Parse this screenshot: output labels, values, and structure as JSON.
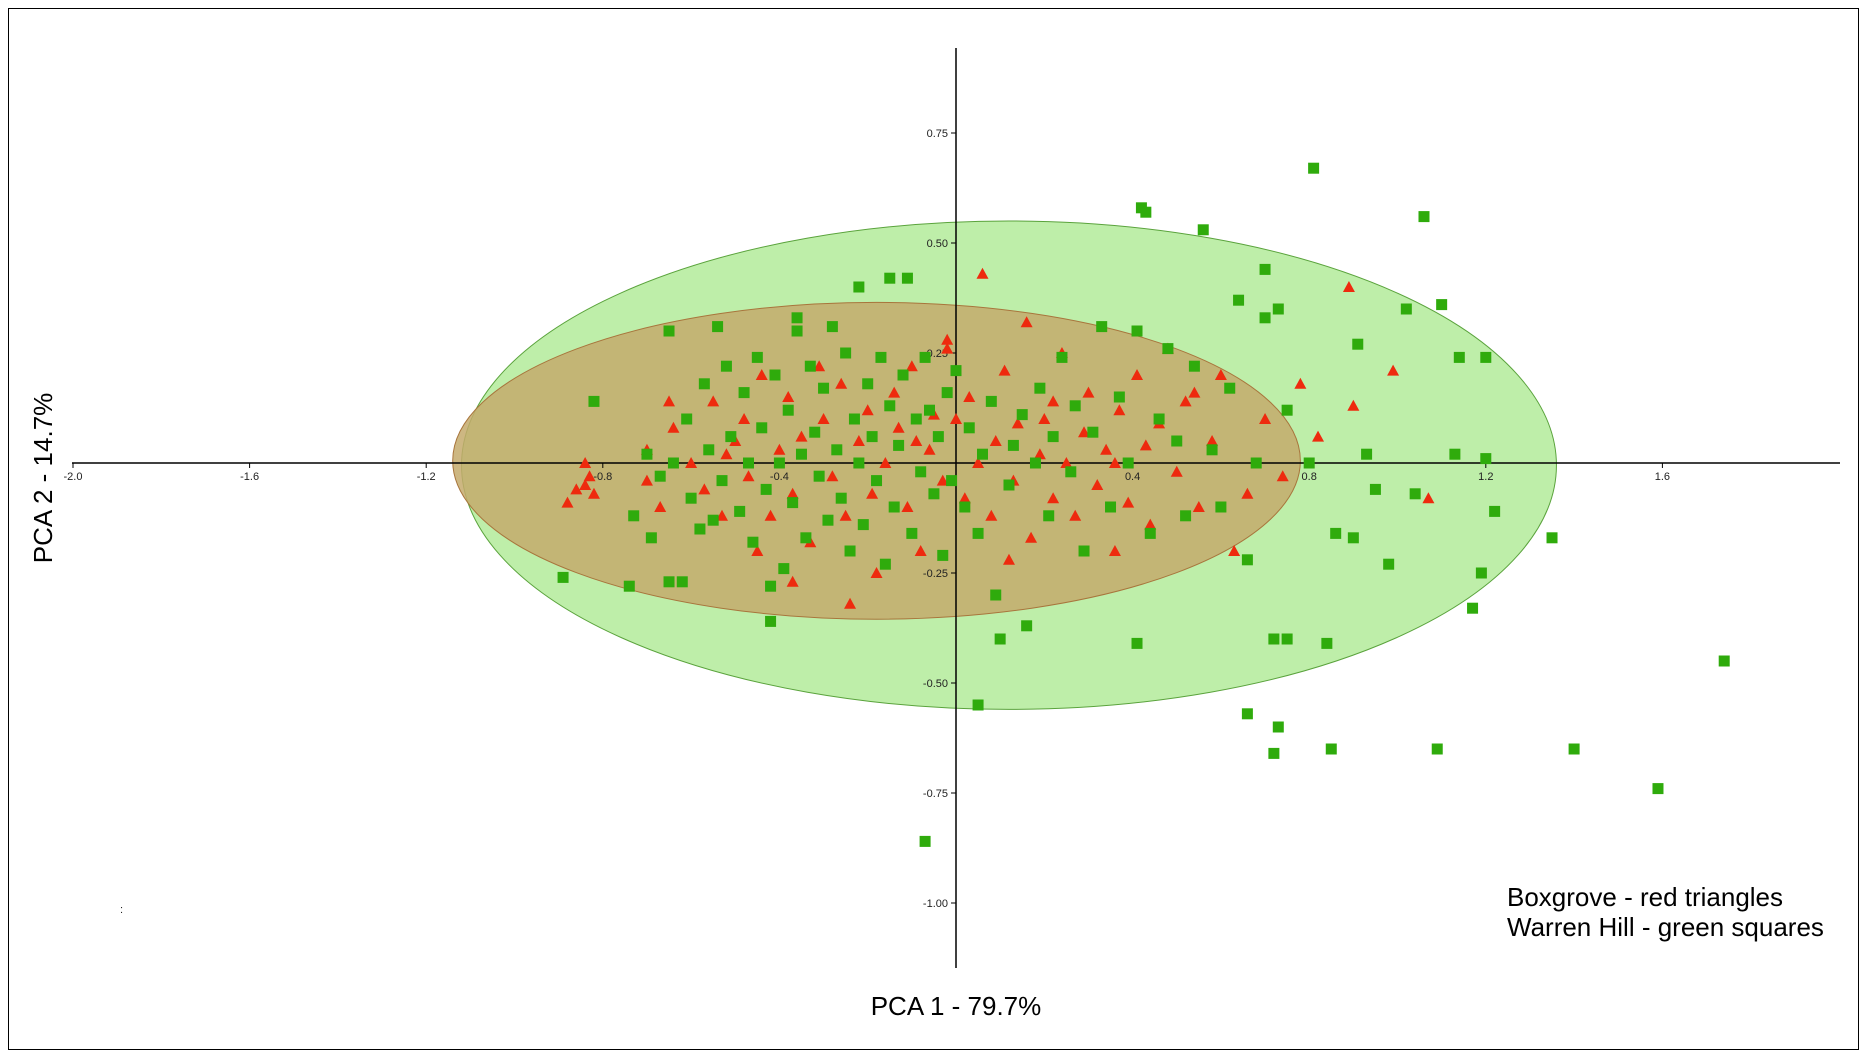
{
  "chart_data": {
    "type": "scatter",
    "title": "",
    "xlabel": "PCA 1 - 79.7%",
    "ylabel": "PCA 2 - 14.7%",
    "xlim": [
      -2.0,
      2.0
    ],
    "ylim": [
      -1.15,
      0.95
    ],
    "x_ticks": [
      "-2.0",
      "-1.6",
      "-1.2",
      "-0.8",
      "-0.4",
      "0.4",
      "0.8",
      "1.2",
      "1.6"
    ],
    "y_ticks": [
      "0.75",
      "0.50",
      "0.25",
      "-0.25",
      "-0.50",
      "-0.75",
      "-1.00"
    ],
    "grid": false,
    "legend": {
      "placement": "bottom-right",
      "lines": [
        "Boxgrove - red triangles",
        "Warren Hill - green squares"
      ]
    },
    "annotation": ":",
    "colors": {
      "boxgrove": "#ee2a0e",
      "warren_hill": "#2fab0c",
      "warren_ellipse_fill": "#a8e88c",
      "warren_ellipse_stroke": "#5aa33c",
      "boxgrove_ellipse_fill": "#c4aa6c",
      "boxgrove_ellipse_stroke": "#a8753c"
    },
    "ellipses": [
      {
        "series": "Warren Hill",
        "cx": 0.12,
        "cy": -0.005,
        "rx": 1.24,
        "ry": 0.555
      },
      {
        "series": "Boxgrove",
        "cx": -0.18,
        "cy": 0.005,
        "rx": 0.96,
        "ry": 0.36
      }
    ],
    "series": [
      {
        "name": "Boxgrove",
        "marker": "triangle",
        "points": [
          [
            -0.83,
            -0.03
          ],
          [
            -0.84,
            -0.05
          ],
          [
            -0.86,
            -0.06
          ],
          [
            -0.82,
            -0.07
          ],
          [
            -0.88,
            -0.09
          ],
          [
            -0.84,
            0.0
          ],
          [
            -0.7,
            0.03
          ],
          [
            -0.7,
            -0.04
          ],
          [
            -0.67,
            -0.1
          ],
          [
            -0.64,
            0.08
          ],
          [
            -0.6,
            0.0
          ],
          [
            -0.57,
            -0.06
          ],
          [
            -0.55,
            0.14
          ],
          [
            -0.53,
            -0.12
          ],
          [
            -0.5,
            0.05
          ],
          [
            -0.48,
            0.1
          ],
          [
            -0.47,
            -0.03
          ],
          [
            -0.45,
            -0.2
          ],
          [
            -0.44,
            0.2
          ],
          [
            -0.42,
            -0.12
          ],
          [
            -0.4,
            0.03
          ],
          [
            -0.38,
            0.15
          ],
          [
            -0.37,
            -0.07
          ],
          [
            -0.35,
            0.06
          ],
          [
            -0.33,
            -0.18
          ],
          [
            -0.31,
            0.22
          ],
          [
            -0.3,
            0.1
          ],
          [
            -0.28,
            -0.03
          ],
          [
            -0.26,
            0.18
          ],
          [
            -0.25,
            -0.12
          ],
          [
            -0.22,
            0.05
          ],
          [
            -0.2,
            0.12
          ],
          [
            -0.19,
            -0.07
          ],
          [
            -0.18,
            -0.25
          ],
          [
            -0.16,
            0.0
          ],
          [
            -0.14,
            0.16
          ],
          [
            -0.13,
            0.08
          ],
          [
            -0.11,
            -0.1
          ],
          [
            -0.1,
            0.22
          ],
          [
            -0.08,
            -0.2
          ],
          [
            -0.06,
            0.03
          ],
          [
            -0.05,
            0.11
          ],
          [
            -0.03,
            -0.04
          ],
          [
            -0.02,
            0.26
          ],
          [
            0.0,
            0.1
          ],
          [
            0.02,
            -0.08
          ],
          [
            0.03,
            0.15
          ],
          [
            0.05,
            0.0
          ],
          [
            0.06,
            0.43
          ],
          [
            0.08,
            -0.12
          ],
          [
            0.09,
            0.05
          ],
          [
            0.11,
            0.21
          ],
          [
            0.13,
            -0.04
          ],
          [
            0.14,
            0.09
          ],
          [
            0.16,
            0.32
          ],
          [
            0.17,
            -0.17
          ],
          [
            0.19,
            0.02
          ],
          [
            0.2,
            0.1
          ],
          [
            0.22,
            -0.08
          ],
          [
            0.24,
            0.25
          ],
          [
            0.25,
            0.0
          ],
          [
            0.27,
            -0.12
          ],
          [
            0.29,
            0.07
          ],
          [
            0.3,
            0.16
          ],
          [
            0.32,
            -0.05
          ],
          [
            0.34,
            0.03
          ],
          [
            0.36,
            -0.2
          ],
          [
            0.37,
            0.12
          ],
          [
            0.39,
            -0.09
          ],
          [
            0.41,
            0.2
          ],
          [
            0.43,
            0.04
          ],
          [
            0.44,
            -0.14
          ],
          [
            0.46,
            0.09
          ],
          [
            0.48,
            0.26
          ],
          [
            0.5,
            -0.02
          ],
          [
            0.52,
            0.14
          ],
          [
            0.55,
            -0.1
          ],
          [
            0.58,
            0.05
          ],
          [
            0.6,
            0.2
          ],
          [
            0.63,
            -0.2
          ],
          [
            0.66,
            -0.07
          ],
          [
            0.7,
            0.1
          ],
          [
            0.74,
            -0.03
          ],
          [
            0.78,
            0.18
          ],
          [
            0.82,
            0.06
          ],
          [
            0.89,
            0.4
          ],
          [
            0.99,
            0.21
          ],
          [
            1.07,
            -0.08
          ],
          [
            0.12,
            -0.22
          ],
          [
            -0.02,
            0.28
          ],
          [
            -0.24,
            -0.32
          ],
          [
            -0.37,
            -0.27
          ],
          [
            -0.52,
            0.02
          ],
          [
            -0.65,
            0.14
          ],
          [
            -0.09,
            0.05
          ],
          [
            0.22,
            0.14
          ],
          [
            0.36,
            0.0
          ],
          [
            0.54,
            0.16
          ],
          [
            0.9,
            0.13
          ]
        ]
      },
      {
        "name": "Warren Hill",
        "marker": "square",
        "points": [
          [
            -0.89,
            -0.26
          ],
          [
            -0.82,
            0.14
          ],
          [
            -0.74,
            -0.28
          ],
          [
            -0.73,
            -0.12
          ],
          [
            -0.7,
            0.02
          ],
          [
            -0.69,
            -0.17
          ],
          [
            -0.67,
            -0.03
          ],
          [
            -0.65,
            -0.27
          ],
          [
            -0.64,
            0.0
          ],
          [
            -0.62,
            -0.27
          ],
          [
            -0.61,
            0.1
          ],
          [
            -0.6,
            -0.08
          ],
          [
            -0.58,
            -0.15
          ],
          [
            -0.57,
            0.18
          ],
          [
            -0.56,
            0.03
          ],
          [
            -0.55,
            -0.13
          ],
          [
            -0.54,
            0.31
          ],
          [
            -0.53,
            -0.04
          ],
          [
            -0.52,
            0.22
          ],
          [
            -0.51,
            0.06
          ],
          [
            -0.49,
            -0.11
          ],
          [
            -0.48,
            0.16
          ],
          [
            -0.47,
            0.0
          ],
          [
            -0.46,
            -0.18
          ],
          [
            -0.45,
            0.24
          ],
          [
            -0.44,
            0.08
          ],
          [
            -0.43,
            -0.06
          ],
          [
            -0.42,
            -0.36
          ],
          [
            -0.41,
            0.2
          ],
          [
            -0.4,
            0.0
          ],
          [
            -0.39,
            -0.24
          ],
          [
            -0.38,
            0.12
          ],
          [
            -0.37,
            -0.09
          ],
          [
            -0.36,
            0.3
          ],
          [
            -0.35,
            0.02
          ],
          [
            -0.34,
            -0.17
          ],
          [
            -0.33,
            0.22
          ],
          [
            -0.32,
            0.07
          ],
          [
            -0.31,
            -0.03
          ],
          [
            -0.3,
            0.17
          ],
          [
            -0.29,
            -0.13
          ],
          [
            -0.28,
            0.31
          ],
          [
            -0.27,
            0.03
          ],
          [
            -0.26,
            -0.08
          ],
          [
            -0.25,
            0.25
          ],
          [
            -0.24,
            -0.2
          ],
          [
            -0.23,
            0.1
          ],
          [
            -0.22,
            0.0
          ],
          [
            -0.21,
            -0.14
          ],
          [
            -0.2,
            0.18
          ],
          [
            -0.19,
            0.06
          ],
          [
            -0.18,
            -0.04
          ],
          [
            -0.17,
            0.24
          ],
          [
            -0.16,
            -0.23
          ],
          [
            -0.15,
            0.13
          ],
          [
            -0.14,
            -0.1
          ],
          [
            -0.13,
            0.04
          ],
          [
            -0.12,
            0.2
          ],
          [
            -0.11,
            0.42
          ],
          [
            -0.1,
            -0.16
          ],
          [
            -0.09,
            0.1
          ],
          [
            -0.08,
            -0.02
          ],
          [
            -0.07,
            0.24
          ],
          [
            -0.06,
            0.12
          ],
          [
            -0.05,
            -0.07
          ],
          [
            -0.04,
            0.06
          ],
          [
            -0.03,
            -0.21
          ],
          [
            -0.02,
            0.16
          ],
          [
            -0.01,
            -0.04
          ],
          [
            0.0,
            0.21
          ],
          [
            0.02,
            -0.1
          ],
          [
            0.03,
            0.08
          ],
          [
            0.05,
            -0.16
          ],
          [
            0.06,
            0.02
          ],
          [
            0.08,
            0.14
          ],
          [
            0.09,
            -0.3
          ],
          [
            0.1,
            -0.4
          ],
          [
            0.12,
            -0.05
          ],
          [
            0.13,
            0.04
          ],
          [
            0.15,
            0.11
          ],
          [
            0.16,
            -0.37
          ],
          [
            0.18,
            0.0
          ],
          [
            0.19,
            0.17
          ],
          [
            0.21,
            -0.12
          ],
          [
            0.22,
            0.06
          ],
          [
            0.24,
            0.24
          ],
          [
            0.26,
            -0.02
          ],
          [
            0.27,
            0.13
          ],
          [
            0.29,
            -0.2
          ],
          [
            0.31,
            0.07
          ],
          [
            0.33,
            0.31
          ],
          [
            0.35,
            -0.1
          ],
          [
            0.37,
            0.15
          ],
          [
            0.39,
            0.0
          ],
          [
            0.41,
            0.3
          ],
          [
            0.43,
            0.57
          ],
          [
            0.44,
            -0.16
          ],
          [
            0.46,
            0.1
          ],
          [
            0.48,
            0.26
          ],
          [
            0.5,
            0.05
          ],
          [
            0.52,
            -0.12
          ],
          [
            0.54,
            0.22
          ],
          [
            0.56,
            0.53
          ],
          [
            0.58,
            0.03
          ],
          [
            0.6,
            -0.1
          ],
          [
            0.62,
            0.17
          ],
          [
            0.64,
            0.37
          ],
          [
            0.66,
            -0.22
          ],
          [
            0.68,
            0.0
          ],
          [
            0.7,
            0.44
          ],
          [
            0.72,
            -0.4
          ],
          [
            0.73,
            0.35
          ],
          [
            0.75,
            0.12
          ],
          [
            0.8,
            0.0
          ],
          [
            0.81,
            0.67
          ],
          [
            0.86,
            -0.16
          ],
          [
            0.9,
            -0.17
          ],
          [
            0.91,
            0.27
          ],
          [
            0.93,
            0.02
          ],
          [
            0.95,
            -0.06
          ],
          [
            0.98,
            -0.23
          ],
          [
            1.02,
            0.35
          ],
          [
            1.04,
            -0.07
          ],
          [
            1.06,
            0.56
          ],
          [
            1.1,
            0.36
          ],
          [
            1.14,
            0.24
          ],
          [
            1.13,
            0.02
          ],
          [
            1.2,
            0.24
          ],
          [
            1.2,
            0.01
          ],
          [
            1.22,
            -0.11
          ],
          [
            1.19,
            -0.25
          ],
          [
            1.17,
            -0.33
          ],
          [
            1.35,
            -0.17
          ],
          [
            1.4,
            -0.65
          ],
          [
            1.59,
            -0.74
          ],
          [
            1.74,
            -0.45
          ],
          [
            0.66,
            -0.57
          ],
          [
            0.72,
            -0.66
          ],
          [
            0.73,
            -0.6
          ],
          [
            0.85,
            -0.65
          ],
          [
            1.09,
            -0.65
          ],
          [
            0.84,
            -0.41
          ],
          [
            0.75,
            -0.4
          ],
          [
            0.41,
            -0.41
          ],
          [
            0.05,
            -0.55
          ],
          [
            -0.07,
            -0.86
          ],
          [
            0.42,
            0.58
          ],
          [
            0.7,
            0.33
          ],
          [
            -0.22,
            0.4
          ],
          [
            -0.15,
            0.42
          ],
          [
            -0.36,
            0.33
          ],
          [
            -0.65,
            0.3
          ],
          [
            -0.42,
            -0.28
          ]
        ]
      }
    ]
  }
}
